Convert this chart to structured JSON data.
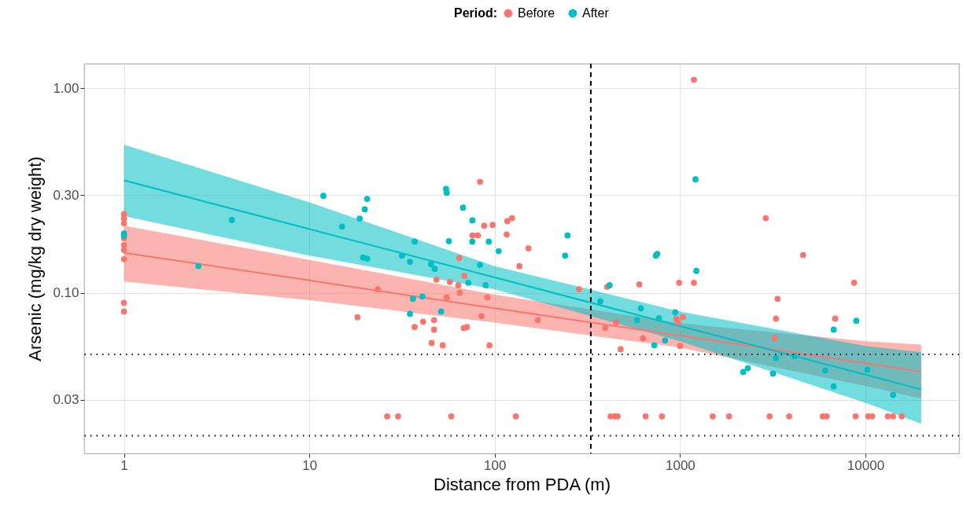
{
  "chart_data": {
    "type": "scatter",
    "xlabel": "Distance from PDA (m)",
    "ylabel": "Arsenic (mg/kg dry weight)",
    "legend_title": "Period:",
    "legend": "top",
    "grid": true,
    "log": "xy",
    "xlim": [
      0.61,
      32000
    ],
    "xticks": [
      1,
      10,
      100,
      1000,
      10000
    ],
    "ylim": [
      0.0164,
      1.32
    ],
    "yticks": [
      {
        "value": 1,
        "label": "1.00"
      },
      {
        "value": 0.3,
        "label": "0.30"
      },
      {
        "value": 0.1,
        "label": "0.10"
      },
      {
        "value": 0.03,
        "label": "0.03"
      }
    ],
    "ref_lines": [
      {
        "axis": "y",
        "value": 0.05,
        "color": "#000000",
        "line_style": "dotted"
      },
      {
        "axis": "y",
        "value": 0.02,
        "color": "#000000",
        "line_style": "dotted"
      },
      {
        "axis": "x",
        "value": 330,
        "color": "#000000",
        "line_style": "dashed"
      }
    ],
    "series": [
      {
        "name": "Before",
        "marker": "circle",
        "color": "#f8766d",
        "x": [
          1,
          1,
          1,
          1,
          1,
          1,
          1,
          1,
          1,
          18.2,
          23.4,
          83.4,
          87.7,
          97.5,
          117,
          124,
          75.9,
          81.1,
          116,
          152,
          64.3,
          68.7,
          48.5,
          57.3,
          63.7,
          64.8,
          136,
          55.1,
          91.4,
          84.9,
          171,
          37,
          41.1,
          47.1,
          47.1,
          68.1,
          70.8,
          45.7,
          52.4,
          93.7,
          285,
          404,
          603,
          451,
          394,
          631,
          478,
          26.3,
          30.1,
          58.3,
          130,
          422,
          443,
          460,
          652,
          798,
          1500,
          1838,
          3042,
          3879,
          5890,
          6180,
          8850,
          10350,
          10870,
          13200,
          14100,
          15700,
          1188,
          2900,
          4610,
          988,
          1188,
          3360,
          8690,
          3290,
          6870,
          3230,
          955,
          975,
          1035,
          1000
        ],
        "values": [
          0.243,
          0.231,
          0.219,
          0.185,
          0.171,
          0.162,
          0.146,
          0.0894,
          0.081,
          0.076,
          0.104,
          0.349,
          0.213,
          0.215,
          0.224,
          0.232,
          0.191,
          0.191,
          0.193,
          0.165,
          0.148,
          0.121,
          0.116,
          0.113,
          0.109,
          0.1,
          0.135,
          0.095,
          0.095,
          0.0769,
          0.0736,
          0.068,
          0.0723,
          0.0736,
          0.0661,
          0.0673,
          0.068,
          0.0569,
          0.0554,
          0.0554,
          0.104,
          0.107,
          0.11,
          0.0716,
          0.0673,
          0.06,
          0.053,
          0.0249,
          0.0249,
          0.0249,
          0.0249,
          0.0249,
          0.0249,
          0.0249,
          0.0249,
          0.0249,
          0.0249,
          0.0249,
          0.0249,
          0.0249,
          0.0249,
          0.0249,
          0.0249,
          0.0249,
          0.0249,
          0.0249,
          0.0249,
          0.0249,
          1.1,
          0.232,
          0.153,
          0.112,
          0.112,
          0.0934,
          0.112,
          0.0748,
          0.0748,
          0.06,
          0.0748,
          0.0716,
          0.076,
          0.055
        ]
      },
      {
        "name": "After",
        "marker": "circle",
        "color": "#00bfc4",
        "x": [
          1,
          1,
          2.52,
          3.82,
          11.9,
          20.5,
          19.9,
          18.7,
          15,
          19.5,
          20.5,
          54.6,
          55.1,
          67.5,
          75.8,
          37,
          56.6,
          75.7,
          92.9,
          105,
          247,
          240,
          740,
          34.9,
          31.6,
          45.3,
          47.5,
          72.1,
          83.4,
          89.3,
          36.2,
          40.7,
          34.9,
          51.4,
          417,
          371,
          615,
          586,
          726,
          769,
          830,
          1211,
          753,
          1224,
          6740,
          8930,
          942,
          3290,
          4150,
          2190,
          2320,
          3170,
          6070,
          10230,
          6740,
          14100
        ],
        "values": [
          0.195,
          0.19,
          0.135,
          0.227,
          0.298,
          0.288,
          0.256,
          0.231,
          0.211,
          0.149,
          0.147,
          0.322,
          0.309,
          0.261,
          0.226,
          0.178,
          0.179,
          0.178,
          0.178,
          0.16,
          0.191,
          0.152,
          0.152,
          0.142,
          0.152,
          0.138,
          0.131,
          0.112,
          0.137,
          0.109,
          0.0935,
          0.096,
          0.0789,
          0.081,
          0.109,
          0.091,
          0.084,
          0.0736,
          0.0554,
          0.075,
          0.0585,
          0.359,
          0.155,
          0.128,
          0.0661,
          0.073,
          0.0804,
          0.048,
          0.049,
          0.041,
          0.0428,
          0.0403,
          0.0417,
          0.042,
          0.0349,
          0.0317
        ]
      },
      {
        "type": "line",
        "marker": "none",
        "color": "#f8766d",
        "x": [
          1,
          10,
          100,
          1000,
          10000,
          20000
        ],
        "values": [
          0.157,
          0.115,
          0.084,
          0.0618,
          0.0453,
          0.0412
        ],
        "lower": [
          0.1135,
          0.092,
          0.0716,
          0.054,
          0.035,
          0.0304
        ],
        "upper": [
          0.213,
          0.145,
          0.098,
          0.071,
          0.058,
          0.0559
        ]
      },
      {
        "type": "line",
        "marker": "none",
        "color": "#00bfc4",
        "x": [
          1,
          10,
          100,
          1000,
          10000,
          20000
        ],
        "values": [
          0.355,
          0.205,
          0.119,
          0.0687,
          0.0398,
          0.0337
        ],
        "lower": [
          0.237,
          0.152,
          0.104,
          0.058,
          0.029,
          0.0229
        ],
        "upper": [
          0.53,
          0.277,
          0.135,
          0.081,
          0.055,
          0.0512
        ]
      }
    ]
  }
}
